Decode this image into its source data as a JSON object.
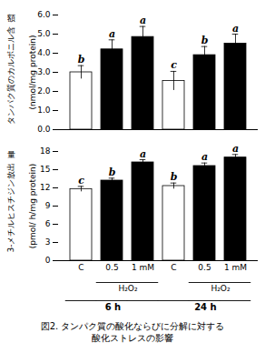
{
  "chart_data": [
    {
      "type": "bar",
      "categories": [
        "C",
        "0.5",
        "1 mM",
        "C",
        "0.5",
        "1 mM"
      ],
      "values": [
        3.0,
        4.2,
        4.85,
        2.55,
        3.9,
        4.5
      ],
      "errors": [
        0.35,
        0.5,
        0.55,
        0.5,
        0.45,
        0.5
      ],
      "colors": [
        "white",
        "black",
        "black",
        "white",
        "black",
        "black"
      ],
      "annotations": [
        "b",
        "a",
        "a",
        "c",
        "b",
        "a"
      ],
      "ylabel": "(nmol/mg protein)",
      "side_label": [
        "額",
        "タンパク質のカルボニル含"
      ],
      "ylim": [
        0,
        6
      ],
      "yticks": [
        0,
        1,
        2,
        3,
        4,
        5,
        6
      ],
      "tick_labels": "y"
    },
    {
      "type": "bar",
      "categories": [
        "C",
        "0.5",
        "1 mM",
        "C",
        "0.5",
        "1 mM"
      ],
      "values": [
        11.8,
        13.2,
        16.2,
        12.3,
        15.6,
        17.0
      ],
      "errors": [
        0.45,
        0.4,
        0.45,
        0.5,
        0.5,
        0.5
      ],
      "colors": [
        "white",
        "black",
        "black",
        "white",
        "black",
        "black"
      ],
      "annotations": [
        "c",
        "b",
        "a",
        "b",
        "a",
        "a"
      ],
      "ylabel": "(pmol/ h/mg protein)",
      "side_label": [
        "量",
        "3-メチルヒスチジン放出"
      ],
      "ylim": [
        0,
        18
      ],
      "yticks": [
        0,
        3,
        6,
        9,
        12,
        15,
        18
      ],
      "treatment": [
        null,
        "H₂O₂",
        "H₂O₂",
        null,
        "H₂O₂",
        "H₂O₂"
      ],
      "group": [
        "6 h",
        "6 h",
        "6 h",
        "24 h",
        "24 h",
        "24 h"
      ]
    }
  ],
  "caption": [
    "図2. タンパク質の酸化ならびに分解に対する",
    "酸化ストレスの影響"
  ]
}
